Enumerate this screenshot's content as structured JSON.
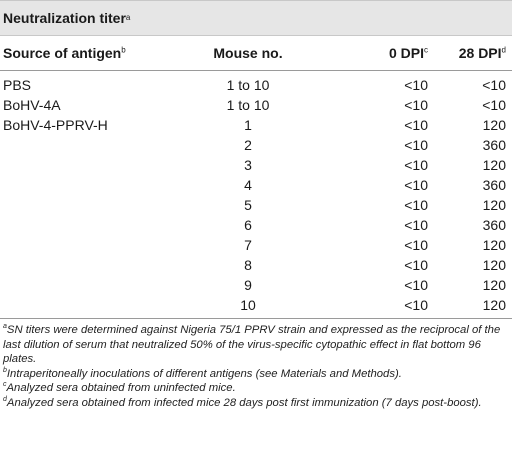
{
  "title": {
    "text": "Neutralization titer",
    "sup": "a"
  },
  "headers": {
    "source": "Source of antigen",
    "source_sup": "b",
    "mouse": "Mouse no.",
    "dpi0": "0 DPI",
    "dpi0_sup": "c",
    "dpi28": "28 DPI",
    "dpi28_sup": "d"
  },
  "rows": [
    {
      "source": "PBS",
      "mouse": "1 to 10",
      "dpi0": "<10",
      "dpi28": "<10"
    },
    {
      "source": "BoHV-4A",
      "mouse": "1 to 10",
      "dpi0": "<10",
      "dpi28": "<10"
    },
    {
      "source": "BoHV-4-PPRV-H",
      "mouse": "1",
      "dpi0": "<10",
      "dpi28": "120"
    },
    {
      "source": "",
      "mouse": "2",
      "dpi0": "<10",
      "dpi28": "360"
    },
    {
      "source": "",
      "mouse": "3",
      "dpi0": "<10",
      "dpi28": "120"
    },
    {
      "source": "",
      "mouse": "4",
      "dpi0": "<10",
      "dpi28": "360"
    },
    {
      "source": "",
      "mouse": "5",
      "dpi0": "<10",
      "dpi28": "120"
    },
    {
      "source": "",
      "mouse": "6",
      "dpi0": "<10",
      "dpi28": "360"
    },
    {
      "source": "",
      "mouse": "7",
      "dpi0": "<10",
      "dpi28": "120"
    },
    {
      "source": "",
      "mouse": "8",
      "dpi0": "<10",
      "dpi28": "120"
    },
    {
      "source": "",
      "mouse": "9",
      "dpi0": "<10",
      "dpi28": "120"
    },
    {
      "source": "",
      "mouse": "10",
      "dpi0": "<10",
      "dpi28": "120"
    }
  ],
  "footnotes": [
    {
      "sup": "a",
      "text": "SN titers were determined against Nigeria 75/1 PPRV strain and expressed as the reciprocal of the last dilution of serum that neutralized 50% of the virus-specific cytopathic effect in flat bottom 96 plates."
    },
    {
      "sup": "b",
      "text": "Intraperitoneally inoculations of different antigens (see Materials and Methods)."
    },
    {
      "sup": "c",
      "text": "Analyzed sera obtained from uninfected mice."
    },
    {
      "sup": "d",
      "text": "Analyzed sera obtained from infected mice 28 days post first immunization (7 days post-boost)."
    }
  ]
}
